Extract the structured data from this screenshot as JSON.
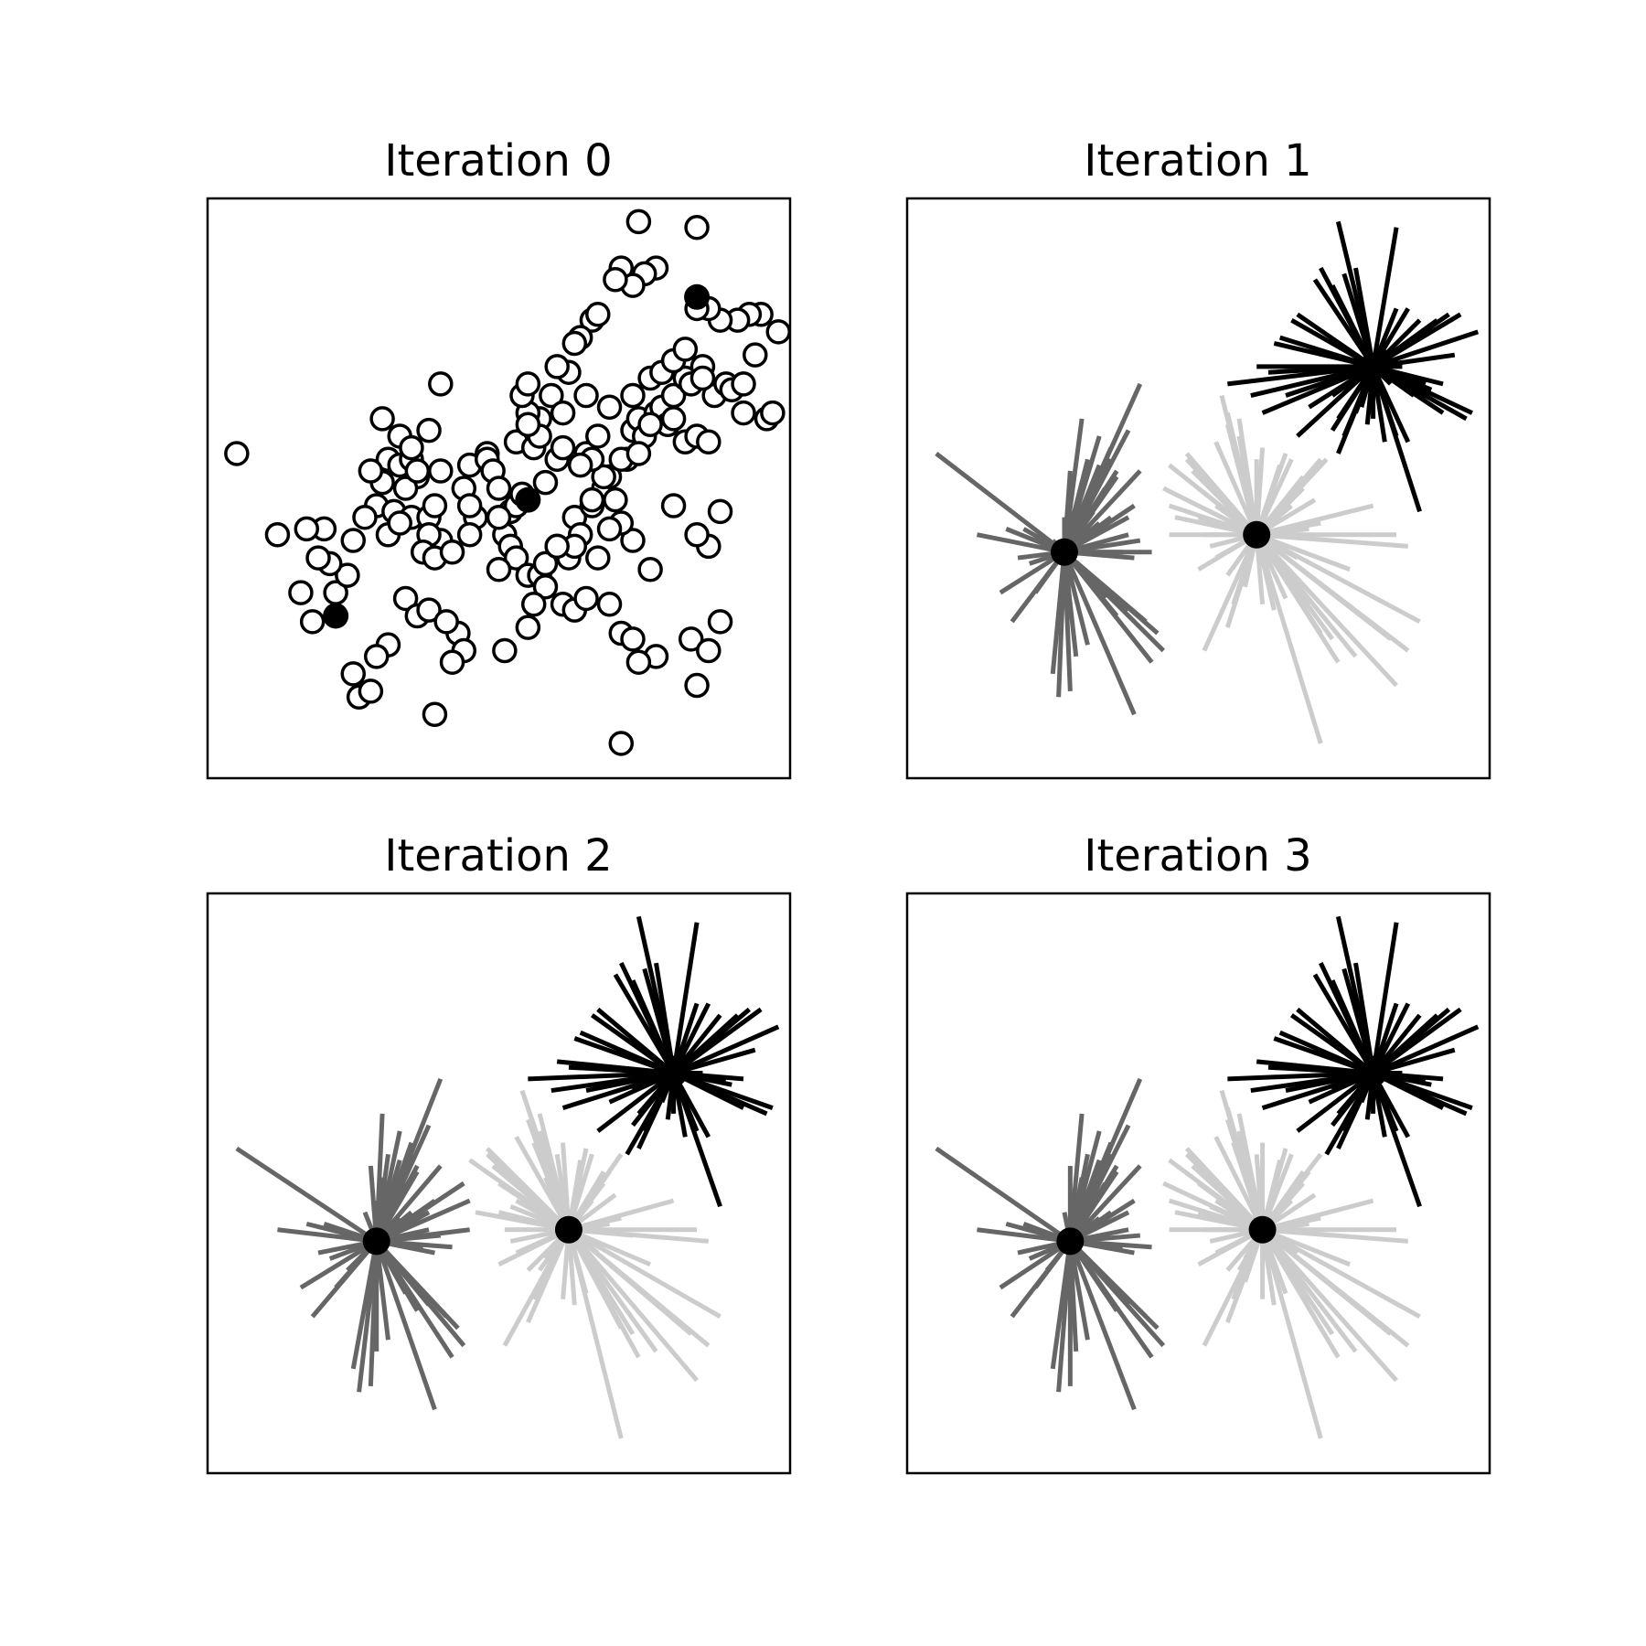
{
  "chart_data": [
    {
      "type": "scatter",
      "title": "Iteration 0",
      "centroids": [
        [
          0.55,
          0.48
        ],
        [
          0.84,
          0.83
        ],
        [
          0.22,
          0.28
        ]
      ],
      "points": [
        [
          0.05,
          0.56
        ],
        [
          0.18,
          0.27
        ],
        [
          0.22,
          0.32
        ],
        [
          0.24,
          0.35
        ],
        [
          0.2,
          0.43
        ],
        [
          0.25,
          0.41
        ],
        [
          0.29,
          0.47
        ],
        [
          0.32,
          0.46
        ],
        [
          0.3,
          0.51
        ],
        [
          0.31,
          0.55
        ],
        [
          0.33,
          0.54
        ],
        [
          0.36,
          0.52
        ],
        [
          0.34,
          0.5
        ],
        [
          0.35,
          0.45
        ],
        [
          0.38,
          0.45
        ],
        [
          0.39,
          0.47
        ],
        [
          0.4,
          0.41
        ],
        [
          0.38,
          0.42
        ],
        [
          0.37,
          0.39
        ],
        [
          0.39,
          0.38
        ],
        [
          0.42,
          0.39
        ],
        [
          0.43,
          0.25
        ],
        [
          0.44,
          0.22
        ],
        [
          0.42,
          0.2
        ],
        [
          0.31,
          0.23
        ],
        [
          0.34,
          0.31
        ],
        [
          0.36,
          0.28
        ],
        [
          0.38,
          0.29
        ],
        [
          0.41,
          0.27
        ],
        [
          0.26,
          0.14
        ],
        [
          0.28,
          0.15
        ],
        [
          0.29,
          0.21
        ],
        [
          0.25,
          0.18
        ],
        [
          0.39,
          0.11
        ],
        [
          0.46,
          0.45
        ],
        [
          0.45,
          0.54
        ],
        [
          0.48,
          0.56
        ],
        [
          0.48,
          0.55
        ],
        [
          0.49,
          0.53
        ],
        [
          0.5,
          0.5
        ],
        [
          0.52,
          0.46
        ],
        [
          0.53,
          0.47
        ],
        [
          0.54,
          0.49
        ],
        [
          0.51,
          0.42
        ],
        [
          0.5,
          0.45
        ],
        [
          0.52,
          0.4
        ],
        [
          0.53,
          0.38
        ],
        [
          0.55,
          0.35
        ],
        [
          0.57,
          0.35
        ],
        [
          0.58,
          0.37
        ],
        [
          0.6,
          0.4
        ],
        [
          0.62,
          0.38
        ],
        [
          0.63,
          0.45
        ],
        [
          0.64,
          0.42
        ],
        [
          0.66,
          0.47
        ],
        [
          0.68,
          0.5
        ],
        [
          0.69,
          0.52
        ],
        [
          0.7,
          0.48
        ],
        [
          0.72,
          0.55
        ],
        [
          0.73,
          0.6
        ],
        [
          0.74,
          0.62
        ],
        [
          0.75,
          0.59
        ],
        [
          0.77,
          0.63
        ],
        [
          0.78,
          0.64
        ],
        [
          0.79,
          0.61
        ],
        [
          0.8,
          0.66
        ],
        [
          0.82,
          0.69
        ],
        [
          0.83,
          0.68
        ],
        [
          0.85,
          0.71
        ],
        [
          0.87,
          0.66
        ],
        [
          0.89,
          0.68
        ],
        [
          0.9,
          0.67
        ],
        [
          0.92,
          0.68
        ],
        [
          0.94,
          0.73
        ],
        [
          0.96,
          0.62
        ],
        [
          0.97,
          0.63
        ],
        [
          0.98,
          0.77
        ],
        [
          0.95,
          0.8
        ],
        [
          0.93,
          0.8
        ],
        [
          0.91,
          0.79
        ],
        [
          0.88,
          0.79
        ],
        [
          0.86,
          0.81
        ],
        [
          0.84,
          0.81
        ],
        [
          0.77,
          0.88
        ],
        [
          0.75,
          0.87
        ],
        [
          0.71,
          0.88
        ],
        [
          0.66,
          0.79
        ],
        [
          0.67,
          0.8
        ],
        [
          0.64,
          0.76
        ],
        [
          0.63,
          0.75
        ],
        [
          0.62,
          0.7
        ],
        [
          0.6,
          0.71
        ],
        [
          0.59,
          0.66
        ],
        [
          0.57,
          0.62
        ],
        [
          0.55,
          0.63
        ],
        [
          0.53,
          0.58
        ],
        [
          0.58,
          0.51
        ],
        [
          0.6,
          0.55
        ],
        [
          0.61,
          0.57
        ],
        [
          0.65,
          0.56
        ],
        [
          0.67,
          0.59
        ],
        [
          0.68,
          0.52
        ],
        [
          0.71,
          0.55
        ],
        [
          0.74,
          0.56
        ],
        [
          0.76,
          0.61
        ],
        [
          0.8,
          0.62
        ],
        [
          0.82,
          0.58
        ],
        [
          0.84,
          0.59
        ],
        [
          0.86,
          0.58
        ],
        [
          0.88,
          0.46
        ],
        [
          0.86,
          0.4
        ],
        [
          0.84,
          0.42
        ],
        [
          0.8,
          0.47
        ],
        [
          0.76,
          0.36
        ],
        [
          0.73,
          0.41
        ],
        [
          0.71,
          0.44
        ],
        [
          0.69,
          0.43
        ],
        [
          0.66,
          0.48
        ],
        [
          0.63,
          0.4
        ],
        [
          0.58,
          0.33
        ],
        [
          0.56,
          0.3
        ],
        [
          0.61,
          0.3
        ],
        [
          0.63,
          0.29
        ],
        [
          0.65,
          0.31
        ],
        [
          0.67,
          0.38
        ],
        [
          0.69,
          0.3
        ],
        [
          0.71,
          0.25
        ],
        [
          0.73,
          0.24
        ],
        [
          0.77,
          0.21
        ],
        [
          0.83,
          0.24
        ],
        [
          0.86,
          0.22
        ],
        [
          0.88,
          0.27
        ],
        [
          0.84,
          0.16
        ],
        [
          0.74,
          0.2
        ],
        [
          0.71,
          0.06
        ],
        [
          0.84,
          0.95
        ],
        [
          0.74,
          0.96
        ],
        [
          0.73,
          0.85
        ],
        [
          0.7,
          0.86
        ],
        [
          0.56,
          0.57
        ],
        [
          0.57,
          0.59
        ],
        [
          0.55,
          0.61
        ],
        [
          0.54,
          0.66
        ],
        [
          0.55,
          0.68
        ],
        [
          0.61,
          0.63
        ],
        [
          0.44,
          0.5
        ],
        [
          0.45,
          0.47
        ],
        [
          0.4,
          0.53
        ],
        [
          0.38,
          0.6
        ],
        [
          0.35,
          0.55
        ],
        [
          0.36,
          0.53
        ],
        [
          0.33,
          0.59
        ],
        [
          0.27,
          0.45
        ],
        [
          0.17,
          0.43
        ],
        [
          0.16,
          0.32
        ],
        [
          0.21,
          0.37
        ],
        [
          0.31,
          0.42
        ],
        [
          0.33,
          0.44
        ],
        [
          0.35,
          0.57
        ],
        [
          0.3,
          0.62
        ],
        [
          0.28,
          0.53
        ],
        [
          0.19,
          0.38
        ],
        [
          0.12,
          0.42
        ],
        [
          0.4,
          0.68
        ],
        [
          0.45,
          0.42
        ],
        [
          0.5,
          0.36
        ],
        [
          0.51,
          0.22
        ],
        [
          0.55,
          0.26
        ],
        [
          0.6,
          0.4
        ],
        [
          0.65,
          0.66
        ],
        [
          0.69,
          0.64
        ],
        [
          0.73,
          0.66
        ],
        [
          0.76,
          0.69
        ],
        [
          0.78,
          0.7
        ],
        [
          0.8,
          0.72
        ],
        [
          0.82,
          0.74
        ],
        [
          0.85,
          0.69
        ],
        [
          0.92,
          0.63
        ],
        [
          0.66,
          0.55
        ],
        [
          0.64,
          0.54
        ]
      ]
    },
    {
      "type": "scatter",
      "title": "Iteration 1",
      "centroids": [
        [
          0.27,
          0.39
        ],
        [
          0.6,
          0.42
        ],
        [
          0.8,
          0.71
        ]
      ],
      "colors": [
        "#666666",
        "#cccccc",
        "#000000"
      ]
    },
    {
      "type": "scatter",
      "title": "Iteration 2",
      "centroids": [
        [
          0.29,
          0.4
        ],
        [
          0.62,
          0.42
        ],
        [
          0.8,
          0.69
        ]
      ],
      "colors": [
        "#666666",
        "#cccccc",
        "#000000"
      ]
    },
    {
      "type": "scatter",
      "title": "Iteration 3",
      "centroids": [
        [
          0.28,
          0.4
        ],
        [
          0.61,
          0.42
        ],
        [
          0.8,
          0.69
        ]
      ],
      "colors": [
        "#666666",
        "#cccccc",
        "#000000"
      ]
    }
  ]
}
